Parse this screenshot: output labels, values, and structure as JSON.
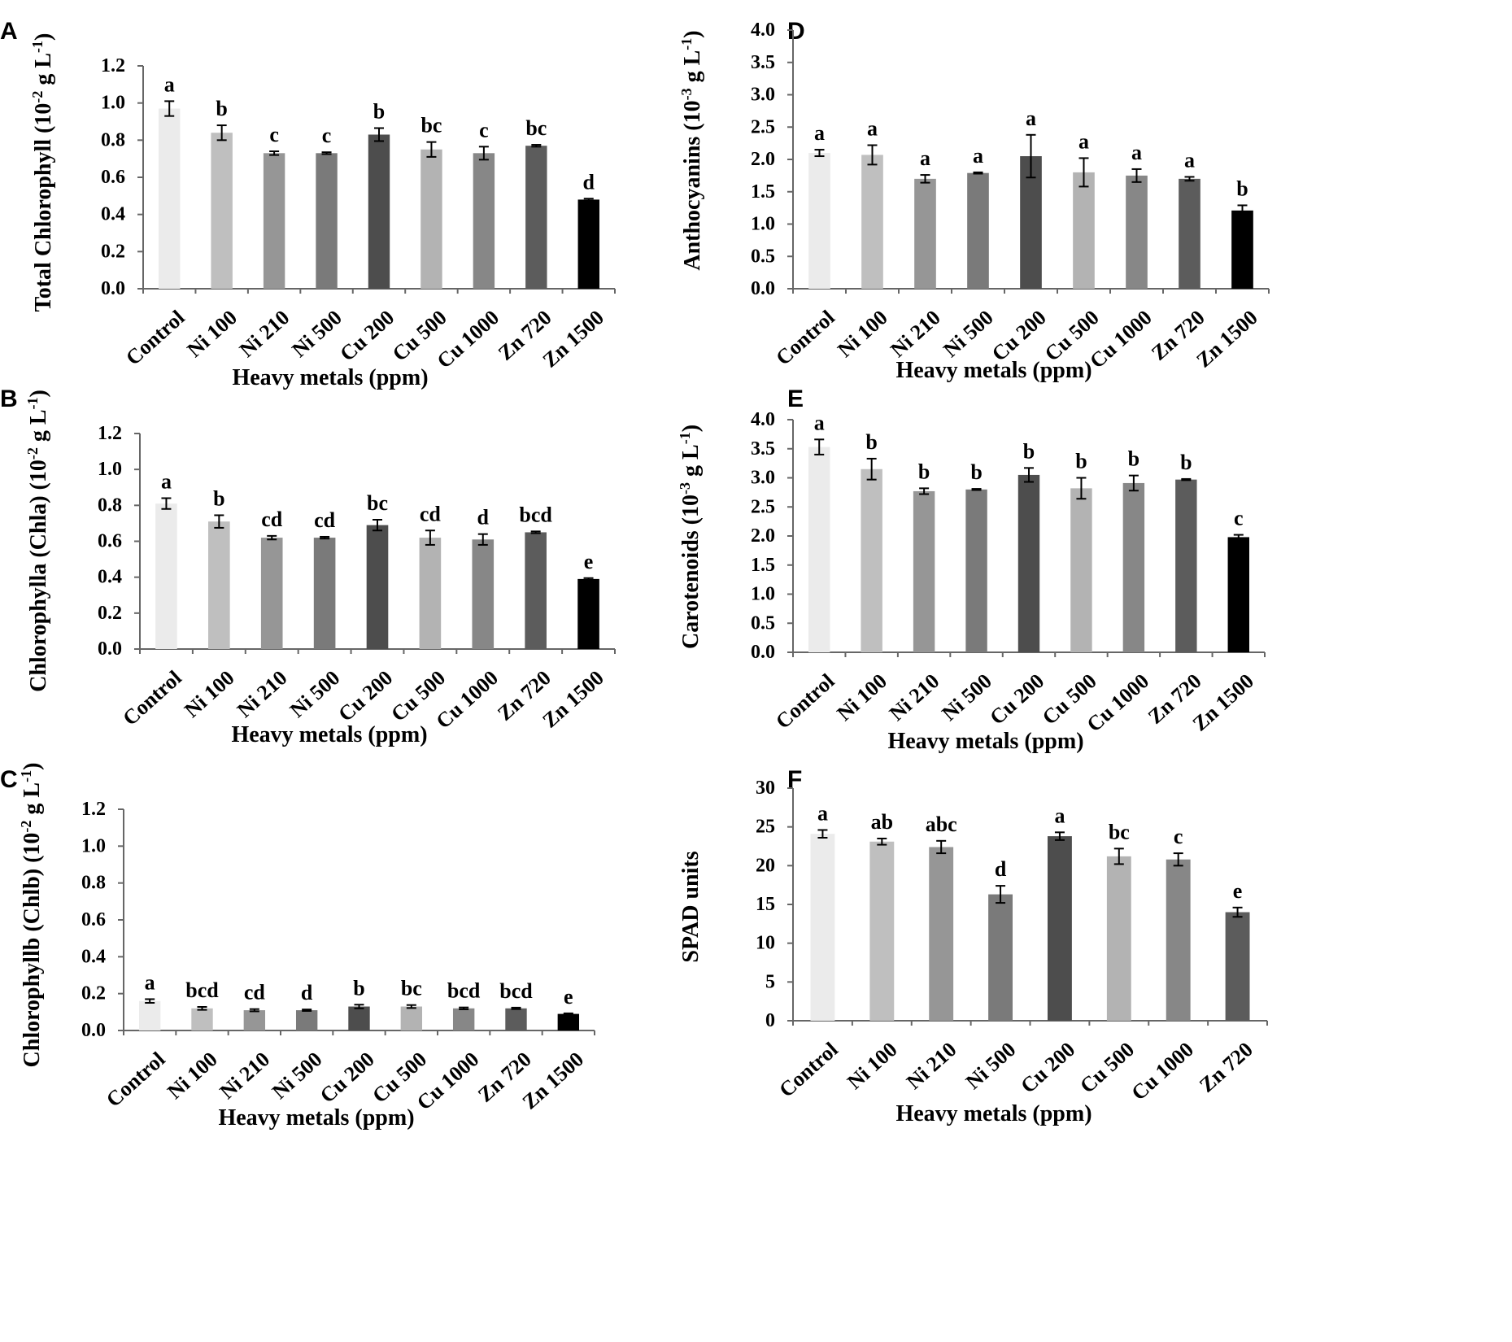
{
  "figure": {
    "chart_data": [
      {
        "panel": "A",
        "type": "bar",
        "ylabel": "Total Chlorophyll (10-2 g L-1)",
        "ylabel_parts": [
          "Total Chlorophyll (10",
          "-2",
          " g  L",
          "-1",
          ")"
        ],
        "xlabel": "Heavy metals (ppm)",
        "ylim": [
          0,
          1.2
        ],
        "ystep": 0.2,
        "decimals": 1,
        "categories": [
          "Control",
          "Ni 100",
          "Ni 210",
          "Ni 500",
          "Cu 200",
          "Cu 500",
          "Cu 1000",
          "Zn 720",
          "Zn 1500"
        ],
        "values": [
          0.97,
          0.84,
          0.73,
          0.73,
          0.83,
          0.75,
          0.73,
          0.77,
          0.48
        ],
        "errors": [
          0.04,
          0.04,
          0.01,
          0.005,
          0.035,
          0.04,
          0.035,
          0.005,
          0.005
        ],
        "letters": [
          "a",
          "b",
          "c",
          "c",
          "b",
          "bc",
          "c",
          "bc",
          "d"
        ],
        "colors": [
          "#ebebeb",
          "#bfbfbf",
          "#969696",
          "#7a7a7a",
          "#4d4d4d",
          "#b3b3b3",
          "#878787",
          "#5c5c5c",
          "#000000"
        ]
      },
      {
        "panel": "B",
        "type": "bar",
        "ylabel": "Chlorophylla (Chla) (10-2 g L-1)",
        "ylabel_parts": [
          "Chlorophylla (Chla) (10",
          "-2",
          " g L",
          "-1",
          ")"
        ],
        "xlabel": "Heavy metals (ppm)",
        "ylim": [
          0,
          1.2
        ],
        "ystep": 0.2,
        "decimals": 1,
        "categories": [
          "Control",
          "Ni 100",
          "Ni 210",
          "Ni 500",
          "Cu 200",
          "Cu 500",
          "Cu 1000",
          "Zn 720",
          "Zn 1500"
        ],
        "values": [
          0.81,
          0.71,
          0.62,
          0.62,
          0.69,
          0.62,
          0.61,
          0.65,
          0.39
        ],
        "errors": [
          0.03,
          0.035,
          0.01,
          0.005,
          0.03,
          0.04,
          0.03,
          0.005,
          0.005
        ],
        "letters": [
          "a",
          "b",
          "cd",
          "cd",
          "bc",
          "cd",
          "d",
          "bcd",
          "e"
        ],
        "colors": [
          "#ebebeb",
          "#bfbfbf",
          "#969696",
          "#7a7a7a",
          "#4d4d4d",
          "#b3b3b3",
          "#878787",
          "#5c5c5c",
          "#000000"
        ]
      },
      {
        "panel": "C",
        "type": "bar",
        "ylabel": "Chlorophyllb (Chlb) (10-2 g L-1)",
        "ylabel_parts": [
          "Chlorophyllb (Chlb) (10",
          "-2",
          " g L",
          "-1",
          ")"
        ],
        "xlabel": "Heavy metals (ppm)",
        "ylim": [
          0,
          1.2
        ],
        "ystep": 0.2,
        "decimals": 1,
        "categories": [
          "Control",
          "Ni 100",
          "Ni 210",
          "Ni 500",
          "Cu 200",
          "Cu 500",
          "Cu 1000",
          "Zn 720",
          "Zn 1500"
        ],
        "values": [
          0.16,
          0.12,
          0.11,
          0.11,
          0.13,
          0.13,
          0.12,
          0.12,
          0.09
        ],
        "errors": [
          0.01,
          0.008,
          0.006,
          0.004,
          0.01,
          0.008,
          0.005,
          0.004,
          0.003
        ],
        "letters": [
          "a",
          "bcd",
          "cd",
          "d",
          "b",
          "bc",
          "bcd",
          "bcd",
          "e"
        ],
        "colors": [
          "#ebebeb",
          "#bfbfbf",
          "#969696",
          "#7a7a7a",
          "#4d4d4d",
          "#b3b3b3",
          "#878787",
          "#5c5c5c",
          "#000000"
        ]
      },
      {
        "panel": "D",
        "type": "bar",
        "ylabel": "Anthocyanins (10-3 g L-1)",
        "ylabel_parts": [
          "Anthocyanins (10",
          "-3",
          " g L",
          "-1",
          ")"
        ],
        "xlabel": "Heavy metals (ppm)",
        "ylim": [
          0,
          4.0
        ],
        "ystep": 0.5,
        "decimals": 1,
        "categories": [
          "Control",
          "Ni 100",
          "Ni 210",
          "Ni 500",
          "Cu 200",
          "Cu 500",
          "Cu 1000",
          "Zn 720",
          "Zn 1500"
        ],
        "values": [
          2.1,
          2.07,
          1.7,
          1.79,
          2.05,
          1.8,
          1.75,
          1.7,
          1.21
        ],
        "errors": [
          0.05,
          0.15,
          0.06,
          0.01,
          0.33,
          0.22,
          0.1,
          0.03,
          0.08
        ],
        "letters": [
          "a",
          "a",
          "a",
          "a",
          "a",
          "a",
          "a",
          "a",
          "b"
        ],
        "colors": [
          "#ebebeb",
          "#bfbfbf",
          "#969696",
          "#7a7a7a",
          "#4d4d4d",
          "#b3b3b3",
          "#878787",
          "#5c5c5c",
          "#000000"
        ]
      },
      {
        "panel": "E",
        "type": "bar",
        "ylabel": "Carotenoids (10-3 g L-1)",
        "ylabel_parts": [
          "Carotenoids (10",
          "-3",
          " g L",
          "-1",
          ")"
        ],
        "xlabel": "Heavy metals (ppm)",
        "ylim": [
          0,
          4.0
        ],
        "ystep": 0.5,
        "decimals": 1,
        "categories": [
          "Control",
          "Ni 100",
          "Ni 210",
          "Ni 500",
          "Cu 200",
          "Cu 500",
          "Cu 1000",
          "Zn 720",
          "Zn 1500"
        ],
        "values": [
          3.53,
          3.15,
          2.77,
          2.8,
          3.05,
          2.82,
          2.91,
          2.97,
          1.98
        ],
        "errors": [
          0.13,
          0.18,
          0.05,
          0.01,
          0.12,
          0.18,
          0.13,
          0.01,
          0.04
        ],
        "letters": [
          "a",
          "b",
          "b",
          "b",
          "b",
          "b",
          "b",
          "b",
          "c"
        ],
        "colors": [
          "#ebebeb",
          "#bfbfbf",
          "#969696",
          "#7a7a7a",
          "#4d4d4d",
          "#b3b3b3",
          "#878787",
          "#5c5c5c",
          "#000000"
        ]
      },
      {
        "panel": "F",
        "type": "bar",
        "ylabel": "SPAD units",
        "ylabel_parts": [
          "SPAD units"
        ],
        "xlabel": "Heavy metals (ppm)",
        "ylim": [
          0,
          30
        ],
        "ystep": 5,
        "decimals": 0,
        "categories": [
          "Control",
          "Ni 100",
          "Ni 210",
          "Ni 500",
          "Cu 200",
          "Cu 500",
          "Cu 1000",
          "Zn 720"
        ],
        "values": [
          24.1,
          23.1,
          22.4,
          16.3,
          23.8,
          21.2,
          20.8,
          14.0
        ],
        "errors": [
          0.5,
          0.4,
          0.8,
          1.1,
          0.5,
          1.0,
          0.8,
          0.6
        ],
        "letters": [
          "a",
          "ab",
          "abc",
          "d",
          "a",
          "bc",
          "c",
          "e"
        ],
        "colors": [
          "#ebebeb",
          "#bfbfbf",
          "#969696",
          "#7a7a7a",
          "#4d4d4d",
          "#b3b3b3",
          "#878787",
          "#5c5c5c"
        ]
      }
    ]
  }
}
